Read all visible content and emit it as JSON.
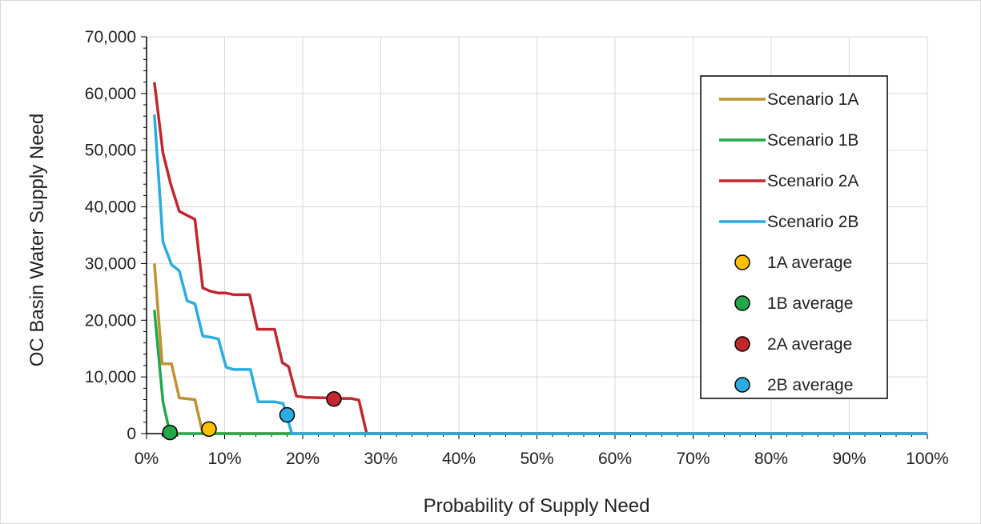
{
  "chart_data": {
    "type": "line",
    "title": "",
    "xlabel": "Probability of Supply Need",
    "ylabel": "OC Basin Water Supply Need",
    "xlim": [
      0,
      100
    ],
    "ylim": [
      0,
      70000
    ],
    "x_ticks": [
      "0%",
      "10%",
      "20%",
      "30%",
      "40%",
      "50%",
      "60%",
      "70%",
      "80%",
      "90%",
      "100%"
    ],
    "y_ticks": [
      "0",
      "10,000",
      "20,000",
      "30,000",
      "40,000",
      "50,000",
      "60,000",
      "70,000"
    ],
    "grid": true,
    "legend_position": "top-right",
    "series": [
      {
        "name": "Scenario 1A",
        "color": "#C0922F",
        "points": [
          [
            1.0,
            30000
          ],
          [
            2.0,
            12300
          ],
          [
            3.2,
            12300
          ],
          [
            4.2,
            6300
          ],
          [
            6.2,
            6000
          ],
          [
            7.2,
            0
          ],
          [
            100,
            0
          ]
        ]
      },
      {
        "name": "Scenario 1B",
        "color": "#22A84A",
        "points": [
          [
            1.0,
            21800
          ],
          [
            2.1,
            5600
          ],
          [
            3.0,
            0
          ],
          [
            100,
            0
          ]
        ]
      },
      {
        "name": "Scenario 2A",
        "color": "#C0282D",
        "points": [
          [
            1.0,
            62000
          ],
          [
            2.1,
            49500
          ],
          [
            3.1,
            44000
          ],
          [
            4.2,
            39200
          ],
          [
            6.2,
            37800
          ],
          [
            7.2,
            25700
          ],
          [
            8.2,
            25100
          ],
          [
            9.2,
            24800
          ],
          [
            10.2,
            24800
          ],
          [
            11.2,
            24500
          ],
          [
            13.2,
            24500
          ],
          [
            14.2,
            18400
          ],
          [
            16.4,
            18400
          ],
          [
            17.4,
            12500
          ],
          [
            18.2,
            11800
          ],
          [
            19.2,
            6600
          ],
          [
            20.4,
            6400
          ],
          [
            23.2,
            6300
          ],
          [
            25.2,
            6200
          ],
          [
            26.2,
            6200
          ],
          [
            27.2,
            5900
          ],
          [
            28.2,
            0
          ],
          [
            100,
            0
          ]
        ]
      },
      {
        "name": "Scenario 2B",
        "color": "#2AACE2",
        "points": [
          [
            1.0,
            56300
          ],
          [
            2.1,
            33800
          ],
          [
            3.2,
            29800
          ],
          [
            4.2,
            28700
          ],
          [
            5.2,
            23400
          ],
          [
            6.2,
            22900
          ],
          [
            7.2,
            17200
          ],
          [
            8.2,
            17000
          ],
          [
            9.2,
            16700
          ],
          [
            10.2,
            11700
          ],
          [
            11.2,
            11300
          ],
          [
            13.3,
            11300
          ],
          [
            14.3,
            5600
          ],
          [
            16.4,
            5600
          ],
          [
            17.5,
            5300
          ],
          [
            18.6,
            0
          ],
          [
            100,
            0
          ]
        ]
      }
    ],
    "averages": [
      {
        "name": "1A average",
        "color": "#FFC000",
        "x": 8.0,
        "y": 800
      },
      {
        "name": "1B average",
        "color": "#22A84A",
        "x": 3.0,
        "y": 200
      },
      {
        "name": "2A average",
        "color": "#C0282D",
        "x": 24.0,
        "y": 6100
      },
      {
        "name": "2B average",
        "color": "#2AACE2",
        "x": 18.0,
        "y": 3300
      }
    ]
  }
}
